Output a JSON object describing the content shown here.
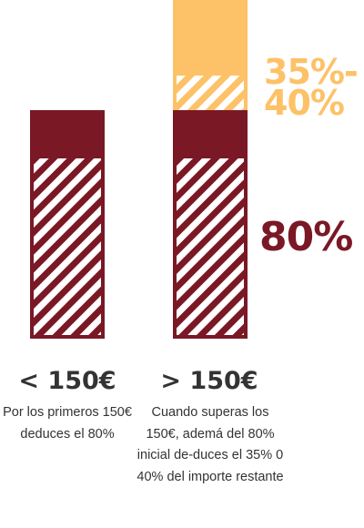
{
  "colors": {
    "maroon": "#7a1826",
    "gold": "#fdc167",
    "text_dark": "#333333"
  },
  "percentages": {
    "upper_line1": "35%-",
    "upper_line2": "40%",
    "lower": "80%"
  },
  "columns": [
    {
      "title": "< 150€",
      "description": "Por los primeros 150€ deduces el 80%"
    },
    {
      "title": "> 150€",
      "description": "Cuando superas los 150€, ademá del 80% inicial de-duces el 35% 0 40% del importe restante"
    }
  ]
}
